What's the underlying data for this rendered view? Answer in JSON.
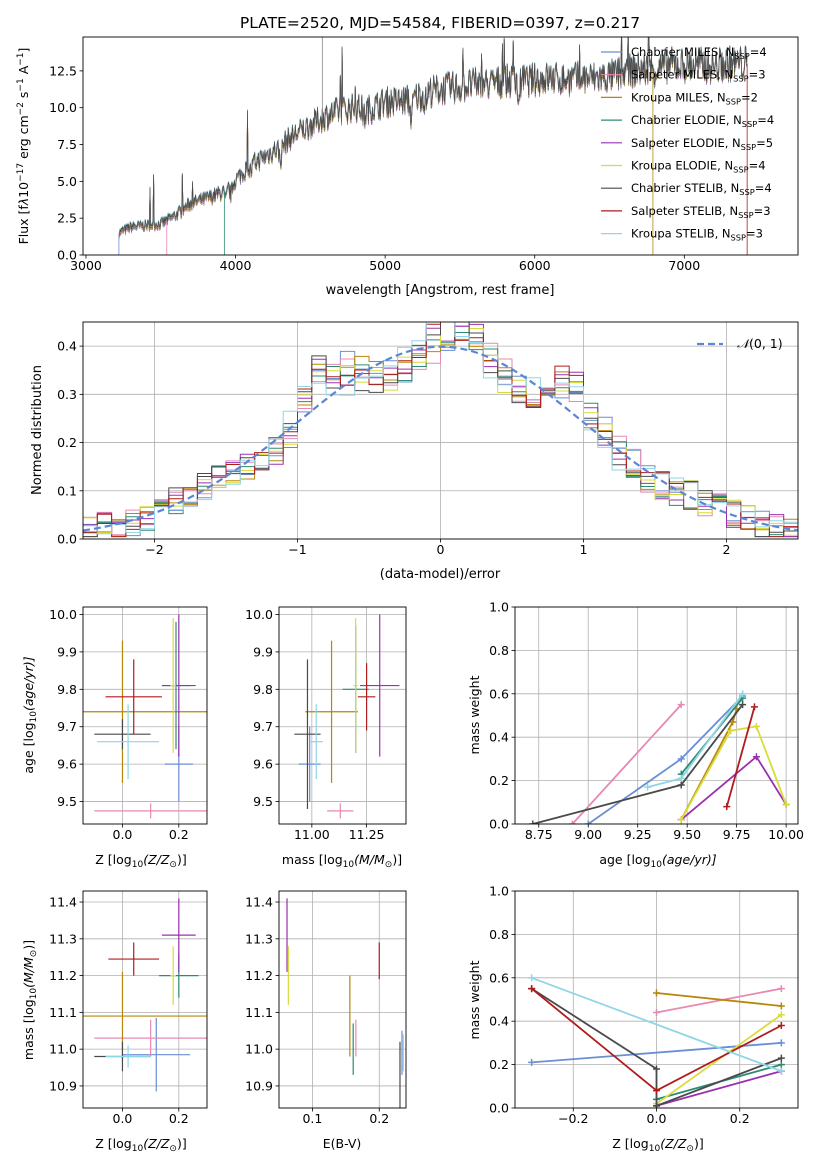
{
  "figure": {
    "title": "PLATE=2520, MJD=54584, FIBERID=0397, z=0.217"
  },
  "model_legend": [
    {
      "label": "Chabrier MILES, N",
      "sub": "SSP",
      "suffix": "=4",
      "color": "#6a8fd5"
    },
    {
      "label": "Salpeter MILES, N",
      "sub": "SSP",
      "suffix": "=3",
      "color": "#e689b3"
    },
    {
      "label": "Kroupa MILES, N",
      "sub": "SSP",
      "suffix": "=2",
      "color": "#b8860b"
    },
    {
      "label": "Chabrier ELODIE, N",
      "sub": "SSP",
      "suffix": "=4",
      "color": "#2e8b73"
    },
    {
      "label": "Salpeter ELODIE, N",
      "sub": "SSP",
      "suffix": "=5",
      "color": "#9b30b0"
    },
    {
      "label": "Kroupa ELODIE, N",
      "sub": "SSP",
      "suffix": "=4",
      "color": "#d7dc3a"
    },
    {
      "label": "Chabrier STELIB, N",
      "sub": "SSP",
      "suffix": "=4",
      "color": "#4a4a4a"
    },
    {
      "label": "Salpeter STELIB, N",
      "sub": "SSP",
      "suffix": "=3",
      "color": "#b01c1c"
    },
    {
      "label": "Kroupa STELIB, N",
      "sub": "SSP",
      "suffix": "=3",
      "color": "#8fd6e6"
    }
  ],
  "chart_data": [
    {
      "id": "spectrum",
      "type": "line",
      "xlabel": "wavelength [Angstrom, rest frame]",
      "ylabel_parts": [
        "Flux [f",
        "λ",
        "10",
        "−17",
        " erg cm",
        "−2",
        " s",
        "−1",
        " A",
        "−1",
        "]"
      ],
      "xlim": [
        2980,
        7760
      ],
      "ylim": [
        0,
        14.8
      ],
      "xticks": [
        3000,
        4000,
        5000,
        6000,
        7000
      ],
      "yticks": [
        0.0,
        2.5,
        5.0,
        7.5,
        10.0,
        12.5
      ],
      "ytick_labels": [
        "0.0",
        "2.5",
        "5.0",
        "7.5",
        "10.0",
        "12.5"
      ],
      "continuum": [
        [
          3220,
          1.5
        ],
        [
          3300,
          1.9
        ],
        [
          3500,
          2.1
        ],
        [
          3600,
          2.7
        ],
        [
          3700,
          3.5
        ],
        [
          3800,
          3.8
        ],
        [
          3900,
          4.2
        ],
        [
          4000,
          5.1
        ],
        [
          4100,
          6.1
        ],
        [
          4200,
          6.7
        ],
        [
          4300,
          7.4
        ],
        [
          4400,
          8.2
        ],
        [
          4500,
          8.8
        ],
        [
          4600,
          9.4
        ],
        [
          4700,
          9.8
        ],
        [
          4800,
          10.0
        ],
        [
          4900,
          9.9
        ],
        [
          5000,
          10.4
        ],
        [
          5100,
          10.4
        ],
        [
          5200,
          10.7
        ],
        [
          5300,
          11.1
        ],
        [
          5400,
          11.3
        ],
        [
          5500,
          11.4
        ],
        [
          5600,
          11.6
        ],
        [
          5700,
          11.6
        ],
        [
          5800,
          11.8
        ],
        [
          5900,
          11.8
        ],
        [
          6000,
          11.9
        ],
        [
          6100,
          12.0
        ],
        [
          6200,
          11.9
        ],
        [
          6300,
          12.0
        ],
        [
          6400,
          12.0
        ],
        [
          6500,
          12.1
        ],
        [
          6600,
          12.4
        ],
        [
          6700,
          12.6
        ],
        [
          6800,
          12.6
        ],
        [
          6900,
          12.9
        ],
        [
          7000,
          12.9
        ],
        [
          7100,
          12.9
        ],
        [
          7200,
          12.8
        ],
        [
          7300,
          13.0
        ],
        [
          7400,
          13.0
        ]
      ]
    },
    {
      "id": "residuals",
      "type": "histogram",
      "xlabel": "(data-model)/error",
      "ylabel": "Normed distribution",
      "xlim": [
        -2.5,
        2.5
      ],
      "ylim": [
        0,
        0.45
      ],
      "xticks": [
        -2,
        -1,
        0,
        1,
        2
      ],
      "xtick_labels": [
        "−2",
        "−1",
        "0",
        "1",
        "2"
      ],
      "yticks": [
        0.0,
        0.1,
        0.2,
        0.3,
        0.4
      ],
      "ytick_labels": [
        "0.0",
        "0.1",
        "0.2",
        "0.3",
        "0.4"
      ],
      "bin_width": 0.1,
      "reference_curve": {
        "label_parts": [
          "𝒩",
          "(0, 1)"
        ],
        "mean": 0,
        "sigma": 1,
        "style": "dashed",
        "color": "#5b86d6"
      }
    },
    {
      "id": "age-vs-metallicity",
      "type": "scatter",
      "xlabel_parts": [
        "Z [log",
        "10",
        "(Z/Z",
        "⊙",
        ")]"
      ],
      "ylabel_parts": [
        "age  [log",
        "10",
        "(age/yr)]"
      ],
      "xlim": [
        -0.14,
        0.3
      ],
      "ylim": [
        9.44,
        10.02
      ],
      "xticks": [
        0.0,
        0.2
      ],
      "xtick_labels": [
        "0.0",
        "0.2"
      ],
      "yticks": [
        9.5,
        9.6,
        9.7,
        9.8,
        9.9,
        10.0
      ],
      "ytick_labels": [
        "9.5",
        "9.6",
        "9.7",
        "9.8",
        "9.9",
        "10.0"
      ],
      "points": [
        {
          "x": 0.2,
          "y": 9.6,
          "xerr": 0.05,
          "yerr": 0.1
        },
        {
          "x": 0.1,
          "y": 9.475,
          "xerr": 0.2,
          "yerr": 0.02
        },
        {
          "x": 0.0,
          "y": 9.74,
          "xerr": 0.3,
          "yerr": 0.19
        },
        {
          "x": 0.19,
          "y": 9.81,
          "xerr": 0.05,
          "yerr": 0.17
        },
        {
          "x": 0.2,
          "y": 9.81,
          "xerr": 0.06,
          "yerr": 0.19
        },
        {
          "x": 0.18,
          "y": 9.81,
          "xerr": 0.01,
          "yerr": 0.18
        },
        {
          "x": 0.0,
          "y": 9.68,
          "xerr": 0.1,
          "yerr": 0.04
        },
        {
          "x": 0.04,
          "y": 9.78,
          "xerr": 0.1,
          "yerr": 0.1
        },
        {
          "x": 0.02,
          "y": 9.66,
          "xerr": 0.11,
          "yerr": 0.1
        }
      ]
    },
    {
      "id": "age-vs-mass",
      "type": "scatter",
      "xlabel_parts": [
        "mass [log",
        "10",
        "(M/M",
        "⊙",
        ")]"
      ],
      "ylabel": "",
      "xlim": [
        10.85,
        11.43
      ],
      "ylim": [
        9.44,
        10.02
      ],
      "xticks": [
        11.0,
        11.25
      ],
      "xtick_labels": [
        "11.00",
        "11.25"
      ],
      "yticks": [
        9.5,
        9.6,
        9.7,
        9.8,
        9.9,
        10.0
      ],
      "ytick_labels": [
        "9.5",
        "9.6",
        "9.7",
        "9.8",
        "9.9",
        "10.0"
      ],
      "points": [
        {
          "x": 10.99,
          "y": 9.6,
          "xerr": 0.05,
          "yerr": 0.1
        },
        {
          "x": 11.13,
          "y": 9.475,
          "xerr": 0.06,
          "yerr": 0.02
        },
        {
          "x": 11.09,
          "y": 9.74,
          "xerr": 0.12,
          "yerr": 0.19
        },
        {
          "x": 11.2,
          "y": 9.8,
          "xerr": 0.06,
          "yerr": 0.17
        },
        {
          "x": 11.31,
          "y": 9.81,
          "xerr": 0.09,
          "yerr": 0.19
        },
        {
          "x": 11.2,
          "y": 9.81,
          "xerr": 0.01,
          "yerr": 0.18
        },
        {
          "x": 10.98,
          "y": 9.68,
          "xerr": 0.06,
          "yerr": 0.2
        },
        {
          "x": 11.25,
          "y": 9.78,
          "xerr": 0.04,
          "yerr": 0.09
        },
        {
          "x": 11.02,
          "y": 9.66,
          "xerr": 0.03,
          "yerr": 0.1
        }
      ]
    },
    {
      "id": "mass-weight-vs-age",
      "type": "line",
      "xlabel_parts": [
        "age  [log",
        "10",
        "(age/yr)]"
      ],
      "ylabel": "mass weight",
      "xlim": [
        8.63,
        10.06
      ],
      "ylim": [
        0,
        1.0
      ],
      "xticks": [
        8.75,
        9.0,
        9.25,
        9.5,
        9.75,
        10.0
      ],
      "xtick_labels": [
        "8.75",
        "9.00",
        "9.25",
        "9.50",
        "9.75",
        "10.00"
      ],
      "yticks": [
        0.0,
        0.2,
        0.4,
        0.6,
        0.8,
        1.0
      ],
      "ytick_labels": [
        "0.0",
        "0.2",
        "0.4",
        "0.6",
        "0.8",
        "1.0"
      ],
      "series": [
        {
          "points": [
            [
              9.0,
              0.0
            ],
            [
              9.47,
              0.3
            ],
            [
              9.78,
              0.59
            ]
          ]
        },
        {
          "points": [
            [
              8.92,
              0.0
            ],
            [
              9.47,
              0.55
            ]
          ]
        },
        {
          "points": [
            [
              9.47,
              0.02
            ],
            [
              9.73,
              0.47
            ],
            [
              9.75,
              0.53
            ]
          ]
        },
        {
          "points": [
            [
              9.47,
              0.23
            ],
            [
              9.78,
              0.58
            ]
          ]
        },
        {
          "points": [
            [
              9.47,
              0.02
            ],
            [
              9.85,
              0.31
            ],
            [
              10.0,
              0.09
            ]
          ]
        },
        {
          "points": [
            [
              9.47,
              0.02
            ],
            [
              9.72,
              0.43
            ],
            [
              9.85,
              0.45
            ],
            [
              10.0,
              0.09
            ]
          ]
        },
        {
          "points": [
            [
              8.72,
              0.0
            ],
            [
              9.47,
              0.18
            ],
            [
              9.78,
              0.55
            ]
          ]
        },
        {
          "points": [
            [
              9.7,
              0.08
            ],
            [
              9.84,
              0.54
            ]
          ]
        },
        {
          "points": [
            [
              9.3,
              0.17
            ],
            [
              9.47,
              0.21
            ],
            [
              9.78,
              0.6
            ]
          ]
        }
      ]
    },
    {
      "id": "mass-vs-metallicity",
      "type": "scatter",
      "xlabel_parts": [
        "Z [log",
        "10",
        "(Z/Z",
        "⊙",
        ")]"
      ],
      "ylabel_parts": [
        "mass [log",
        "10",
        "(M/M",
        "⊙",
        ")]"
      ],
      "xlim": [
        -0.14,
        0.3
      ],
      "ylim": [
        10.84,
        11.43
      ],
      "xticks": [
        0.0,
        0.2
      ],
      "xtick_labels": [
        "0.0",
        "0.2"
      ],
      "yticks": [
        10.9,
        11.0,
        11.1,
        11.2,
        11.3,
        11.4
      ],
      "ytick_labels": [
        "10.9",
        "11.0",
        "11.1",
        "11.2",
        "11.3",
        "11.4"
      ],
      "points": [
        {
          "x": 0.12,
          "y": 10.985,
          "xerr": 0.12,
          "yerr": 0.1
        },
        {
          "x": 0.1,
          "y": 11.03,
          "xerr": 0.2,
          "yerr": 0.05
        },
        {
          "x": 0.0,
          "y": 11.09,
          "xerr": 0.3,
          "yerr": 0.12
        },
        {
          "x": 0.2,
          "y": 11.2,
          "xerr": 0.07,
          "yerr": 0.06
        },
        {
          "x": 0.2,
          "y": 11.31,
          "xerr": 0.06,
          "yerr": 0.1
        },
        {
          "x": 0.18,
          "y": 11.2,
          "xerr": 0.01,
          "yerr": 0.08
        },
        {
          "x": 0.0,
          "y": 10.98,
          "xerr": 0.1,
          "yerr": 0.04
        },
        {
          "x": 0.04,
          "y": 11.245,
          "xerr": 0.09,
          "yerr": 0.045
        },
        {
          "x": 0.02,
          "y": 10.98,
          "xerr": 0.08,
          "yerr": 0.03
        }
      ]
    },
    {
      "id": "mass-vs-reddening",
      "type": "scatter",
      "xlabel": "E(B-V)",
      "ylabel": "",
      "xlim": [
        0.05,
        0.24
      ],
      "ylim": [
        10.84,
        11.43
      ],
      "xticks": [
        0.1,
        0.2
      ],
      "xtick_labels": [
        "0.1",
        "0.2"
      ],
      "yticks": [
        10.9,
        11.0,
        11.1,
        11.2,
        11.3,
        11.4
      ],
      "ytick_labels": [
        "10.9",
        "11.0",
        "11.1",
        "11.2",
        "11.3",
        "11.4"
      ],
      "points": [
        {
          "x": 0.234,
          "y": 10.99,
          "xerr": 0,
          "yerr": 0.06
        },
        {
          "x": 0.165,
          "y": 11.03,
          "xerr": 0,
          "yerr": 0.05
        },
        {
          "x": 0.156,
          "y": 11.09,
          "xerr": 0,
          "yerr": 0.11
        },
        {
          "x": 0.161,
          "y": 11.0,
          "xerr": 0,
          "yerr": 0.07
        },
        {
          "x": 0.062,
          "y": 11.31,
          "xerr": 0,
          "yerr": 0.1
        },
        {
          "x": 0.064,
          "y": 11.2,
          "xerr": 0,
          "yerr": 0.08
        },
        {
          "x": 0.231,
          "y": 10.93,
          "xerr": 0,
          "yerr": 0.09
        },
        {
          "x": 0.2,
          "y": 11.24,
          "xerr": 0,
          "yerr": 0.05
        },
        {
          "x": 0.236,
          "y": 10.99,
          "xerr": 0,
          "yerr": 0.05
        }
      ]
    },
    {
      "id": "mass-weight-vs-metallicity",
      "type": "line",
      "xlabel_parts": [
        "Z [log",
        "10",
        "(Z/Z",
        "⊙",
        ")]"
      ],
      "ylabel": "mass weight",
      "xlim": [
        -0.34,
        0.34
      ],
      "ylim": [
        0,
        1.0
      ],
      "xticks": [
        -0.2,
        0.0,
        0.2
      ],
      "xtick_labels": [
        "−0.2",
        "0.0",
        "0.2"
      ],
      "yticks": [
        0.0,
        0.2,
        0.4,
        0.6,
        0.8,
        1.0
      ],
      "ytick_labels": [
        "0.0",
        "0.2",
        "0.4",
        "0.6",
        "0.8",
        "1.0"
      ],
      "series": [
        {
          "points": [
            [
              -0.3,
              0.21
            ],
            [
              0.3,
              0.3
            ]
          ]
        },
        {
          "points": [
            [
              0.0,
              0.44
            ],
            [
              0.3,
              0.55
            ]
          ]
        },
        {
          "points": [
            [
              0.0,
              0.53
            ],
            [
              0.3,
              0.47
            ]
          ]
        },
        {
          "points": [
            [
              0.0,
              0.04
            ],
            [
              0.3,
              0.2
            ]
          ]
        },
        {
          "points": [
            [
              0.0,
              0.01
            ],
            [
              0.3,
              0.17
            ]
          ]
        },
        {
          "points": [
            [
              0.0,
              0.02
            ],
            [
              0.3,
              0.43
            ]
          ]
        },
        {
          "points": [
            [
              -0.3,
              0.55
            ],
            [
              0.0,
              0.18
            ],
            [
              0.0,
              0.01
            ],
            [
              0.3,
              0.23
            ]
          ]
        },
        {
          "points": [
            [
              -0.3,
              0.55
            ],
            [
              0.0,
              0.08
            ],
            [
              0.3,
              0.38
            ]
          ]
        },
        {
          "points": [
            [
              -0.3,
              0.6
            ],
            [
              0.3,
              0.17
            ]
          ]
        }
      ]
    }
  ]
}
